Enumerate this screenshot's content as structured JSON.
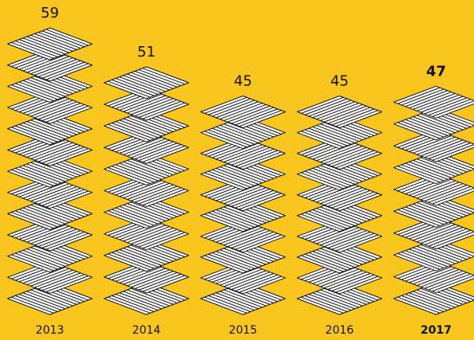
{
  "chart_data": {
    "type": "pictogram",
    "categories": [
      "2013",
      "2014",
      "2015",
      "2016",
      "2017"
    ],
    "values": [
      59,
      51,
      45,
      45,
      47
    ],
    "ylim": [
      0,
      60
    ],
    "emphasis_index": 4,
    "background": "#f9c51f",
    "color": "#ffffff",
    "stroke": "#111111"
  }
}
